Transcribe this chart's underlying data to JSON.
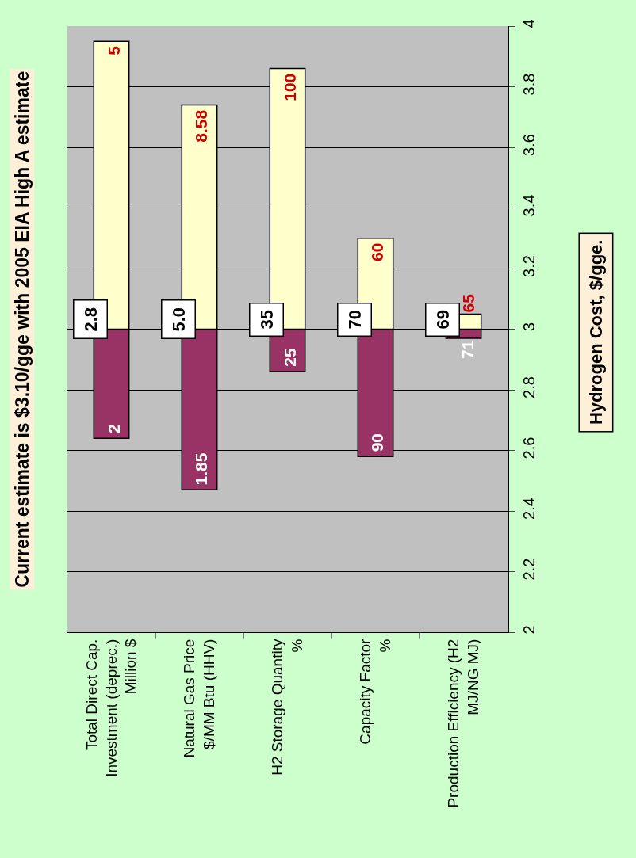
{
  "chart_data": {
    "type": "bar",
    "title": "Current estimate is $3.10/gge with 2005 EIA High A estimate",
    "ylabel": "Hydrogen Cost, $/gge.",
    "categories": [
      "Total Direct Cap.\nInvestment (deprec.)\nMillion $",
      "Natural Gas Price\n$/MM Btu (HHV)",
      "H2 Storage Quantity\n%",
      "Capacity Factor\n%",
      "Production Efficiency (H2\nMJ/NG MJ)"
    ],
    "series": [
      {
        "color": "#993366",
        "base": [
          3,
          3,
          3,
          3,
          3
        ],
        "values": [
          -0.36,
          -0.53,
          -0.14,
          -0.42,
          -0.03
        ]
      },
      {
        "color": "#ffffcc",
        "base": [
          3,
          3,
          3,
          3,
          3
        ],
        "values": [
          0.95,
          0.74,
          0.86,
          0.3,
          0.05
        ]
      }
    ],
    "annotations": [
      "2.8",
      "5.0",
      "35",
      "70",
      "69",
      {
        "text": "2",
        "x": "Total Direct Cap.\nInvestment (deprec.)\nMillion $",
        "y": 2.64
      },
      {
        "text": "1.85",
        "x": "Natural Gas Price\n$/MM Btu (HHV)",
        "y": 2.47
      },
      {
        "text": "25",
        "x": "H2 Storage Quantity\n%",
        "y": 2.86
      },
      {
        "text": "90",
        "x": "Capacity Factor\n%",
        "y": 2.58
      },
      {
        "text": "71",
        "x": "Production Efficiency (H2\nMJ/NG MJ)",
        "y": 2.97
      },
      {
        "text": "5",
        "x": "Total Direct Cap.\nInvestment (deprec.)\nMillion $",
        "y": 3.95
      },
      {
        "text": "8.58",
        "x": "Natural Gas Price\n$/MM Btu (HHV)",
        "y": 3.74
      },
      {
        "text": "100",
        "x": "H2 Storage Quantity\n%",
        "y": 3.86
      },
      {
        "text": "60",
        "x": "Capacity Factor\n%",
        "y": 3.3
      },
      {
        "text": "65",
        "x": "Production Efficiency (H2\nMJ/NG MJ)",
        "y": 3.05
      }
    ],
    "ylim": [
      2,
      4
    ],
    "yticks": [
      2,
      2.2,
      2.4,
      2.6,
      2.8,
      3,
      3.2,
      3.4,
      3.6,
      3.8,
      4
    ],
    "grid": "y"
  }
}
